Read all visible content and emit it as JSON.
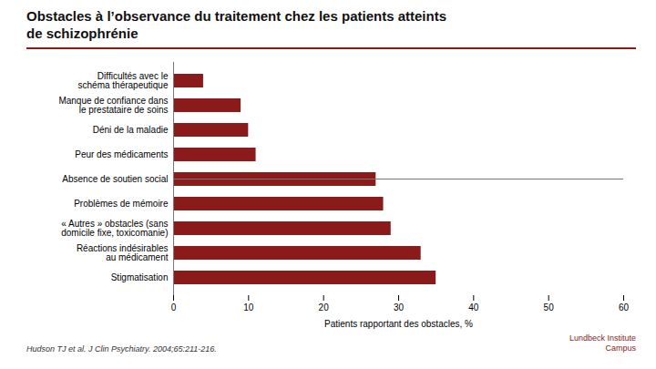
{
  "chart_data": {
    "type": "bar",
    "orientation": "horizontal",
    "title": "Obstacles à l’observance du traitement chez les patients atteints",
    "subtitle": "de schizophrénie",
    "categories": [
      "Stigmatisation",
      "Réactions indésirables\nau médicament",
      "« Autres » obstacles (sans\ndomicile fixe, toxicomanie)",
      "Problèmes de mémoire",
      "Absence de soutien social",
      "Peur des médicaments",
      "Déni de la maladie",
      "Manque de confiance dans\nle prestataire de soins",
      "Difficultés avec le\nschéma thérapeutique"
    ],
    "values": [
      35,
      33,
      29,
      28,
      27,
      11,
      10,
      9,
      4
    ],
    "color": "#8B1A1A",
    "xlabel": "Patients rapportant des obstacles, %",
    "xlim": [
      0,
      60
    ],
    "xticks": [
      0,
      10,
      20,
      30,
      40,
      50,
      60
    ],
    "grid": false,
    "annotations": [
      "Hudson TJ et al. J Clin Psychiatry. 2004;65:211-216.",
      "Lundbeck Institute\nCampus"
    ]
  }
}
